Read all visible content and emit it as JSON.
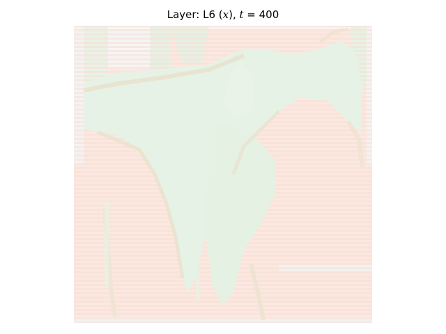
{
  "chart_data": {
    "type": "heatmap",
    "title": "Layer: L6 (x), t = 400",
    "title_parts": {
      "prefix": "Layer: L6 (",
      "var": "x",
      "middle": "), ",
      "t_symbol": "t",
      "suffix": " = 400"
    },
    "xlabel": "",
    "ylabel": "",
    "axes_visible": false,
    "colorbar": false,
    "colormap": "diverging red-green (near-neutral values)",
    "description_values_range": [
      -1,
      1
    ],
    "colors": {
      "neutral": "#f4f4f4",
      "positive": "#e8f3e8",
      "negative": "#fbe7df",
      "edge_tan": "#eae3cf"
    }
  }
}
